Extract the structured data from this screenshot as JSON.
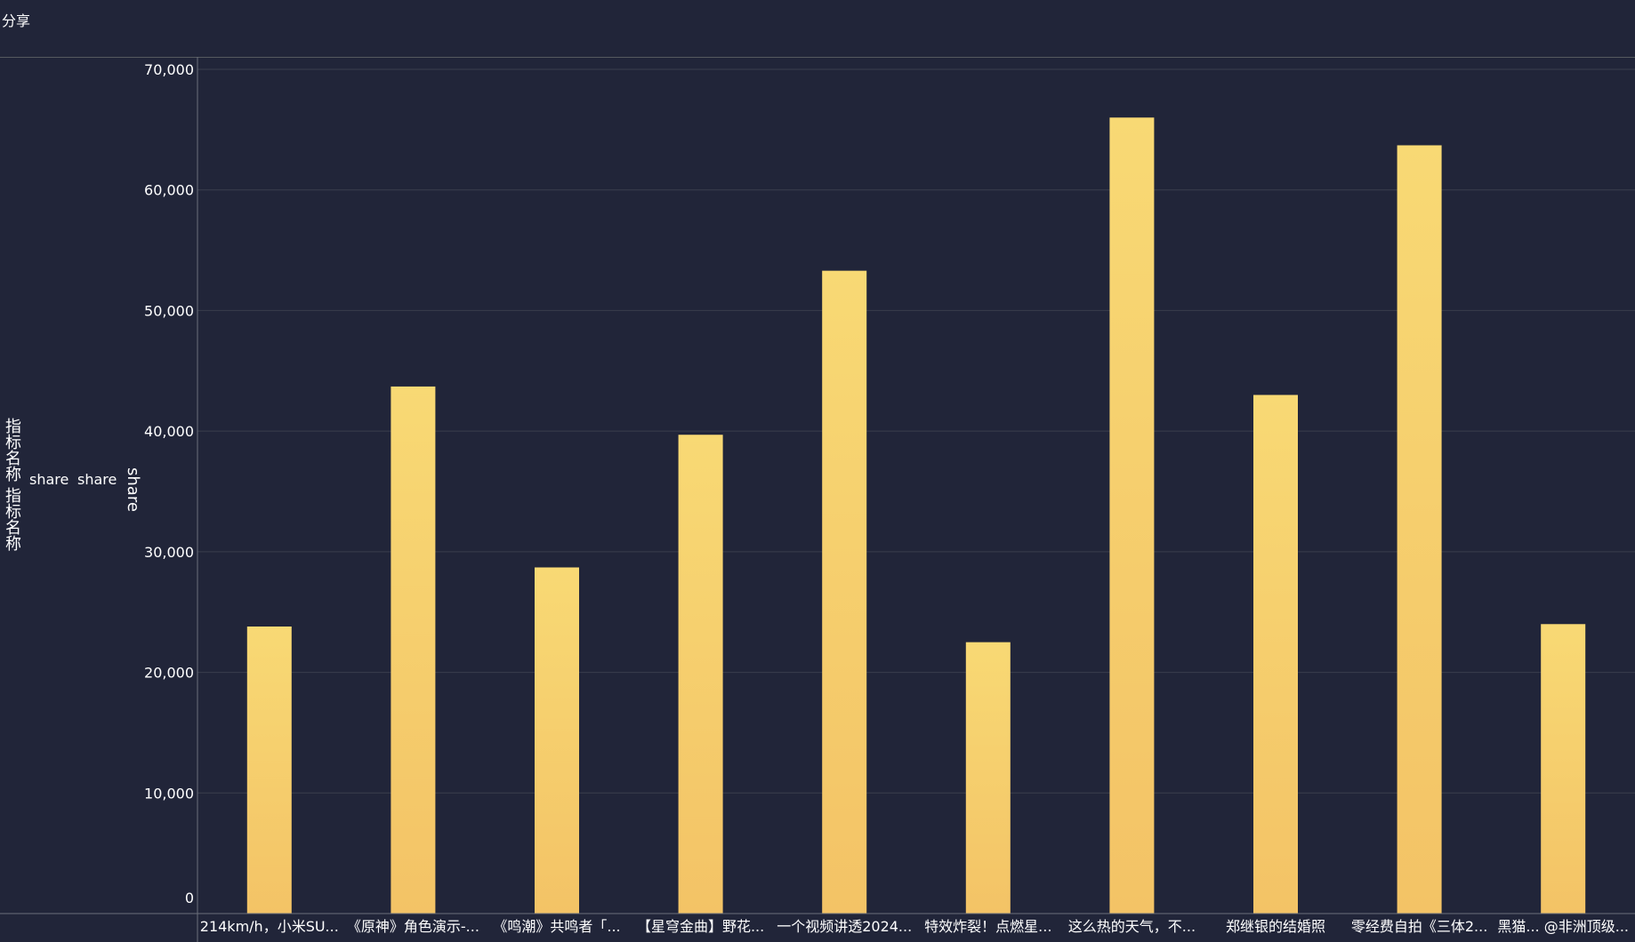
{
  "header": {
    "title": "分享"
  },
  "side_labels": {
    "metric_name_1": "指标名称",
    "metric_name_2": "指标名称",
    "share_1": "share",
    "share_2": "share",
    "share_vertical": "share"
  },
  "colors": {
    "background": "#212539",
    "bar_top": "#f8d974",
    "bar_bottom": "#f3c366",
    "grid": "#3a3e4d",
    "axis": "#6b6f7a",
    "text": "#ffffff"
  },
  "chart_data": {
    "type": "bar",
    "title": "",
    "xlabel": "",
    "ylabel": "share",
    "ylim": [
      0,
      70000
    ],
    "yticks": [
      0,
      10000,
      20000,
      30000,
      40000,
      50000,
      60000,
      70000
    ],
    "ytick_labels": [
      "0",
      "10,000",
      "20,000",
      "30,000",
      "40,000",
      "50,000",
      "60,000",
      "70,000"
    ],
    "grid": true,
    "categories": [
      "214km/h，小米SU...",
      "《原神》角色演示-...",
      "《鸣潮》共鸣者「...",
      "【星穹金曲】野花...",
      "一个视频讲透2024...",
      "特效炸裂！点燃星...",
      "这么热的天气，不...",
      "郑继银的结婚照",
      "零经费自拍《三体2...",
      "黑猫... @非洲顶级..."
    ],
    "series": [
      {
        "values": [
          23800,
          43700,
          28700,
          39700,
          53300,
          22500,
          66000,
          43000,
          63700,
          24000
        ]
      }
    ]
  }
}
